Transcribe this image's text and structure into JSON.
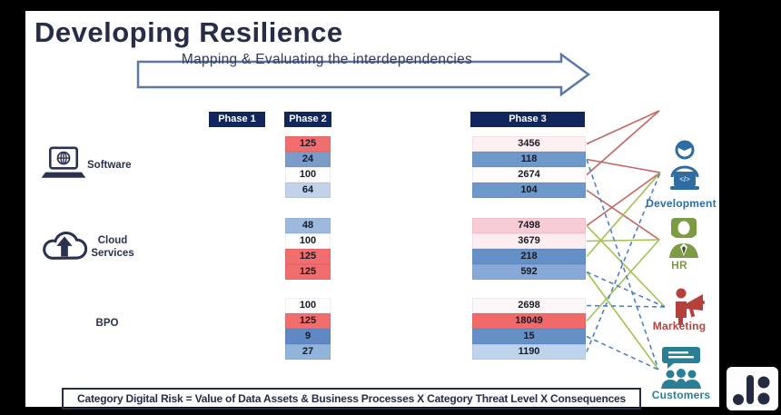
{
  "title": "Developing Resilience",
  "arrow_banner": {
    "label": "Mapping & Evaluating the interdependencies"
  },
  "phases": [
    {
      "label": "Phase 1"
    },
    {
      "label": "Phase 2"
    },
    {
      "label": "Phase 3"
    }
  ],
  "groups": [
    {
      "id": "software",
      "label": "Software",
      "icon": "laptop-globe-icon",
      "phase2": [
        {
          "value": "125",
          "color": "#f26d6d"
        },
        {
          "value": "24",
          "color": "#7b9cc9"
        },
        {
          "value": "100",
          "color": "#fdfdfe"
        },
        {
          "value": "64",
          "color": "#c2d3e9"
        }
      ],
      "phase3": [
        {
          "value": "3456",
          "color": "#fdf0f2"
        },
        {
          "value": "118",
          "color": "#6e97ca"
        },
        {
          "value": "2674",
          "color": "#fefbfc"
        },
        {
          "value": "104",
          "color": "#6e97ca"
        }
      ]
    },
    {
      "id": "cloud",
      "label": "Cloud Services",
      "icon": "cloud-upload-icon",
      "phase2": [
        {
          "value": "48",
          "color": "#9dbade"
        },
        {
          "value": "100",
          "color": "#fefeff"
        },
        {
          "value": "125",
          "color": "#f26d6d"
        },
        {
          "value": "125",
          "color": "#f26d6d"
        }
      ],
      "phase3": [
        {
          "value": "7498",
          "color": "#f9ccd5"
        },
        {
          "value": "3679",
          "color": "#fdedf0"
        },
        {
          "value": "218",
          "color": "#6590c6"
        },
        {
          "value": "592",
          "color": "#88a9d5"
        }
      ]
    },
    {
      "id": "bpo",
      "label": "BPO",
      "icon": "none",
      "phase2": [
        {
          "value": "100",
          "color": "#fefeff"
        },
        {
          "value": "125",
          "color": "#f26d6d"
        },
        {
          "value": "9",
          "color": "#6088c5"
        },
        {
          "value": "27",
          "color": "#92b3da"
        }
      ],
      "phase3": [
        {
          "value": "2698",
          "color": "#fef7f8"
        },
        {
          "value": "18049",
          "color": "#f26969"
        },
        {
          "value": "15",
          "color": "#6590c6"
        },
        {
          "value": "1190",
          "color": "#bed3ec"
        }
      ]
    }
  ],
  "stakeholders": [
    {
      "id": "development",
      "label": "Development",
      "color": "#2e6da4",
      "icon": "developer-laptop-icon"
    },
    {
      "id": "hr",
      "label": "HR",
      "color": "#7d9b44",
      "icon": "hr-person-icon"
    },
    {
      "id": "marketing",
      "label": "Marketing",
      "color": "#b5413c",
      "icon": "megaphone-person-icon"
    },
    {
      "id": "customers",
      "label": "Customers",
      "color": "#2a7f96",
      "icon": "customers-group-icon"
    }
  ],
  "connections": [
    {
      "from": "software.0",
      "to": "offpage_top",
      "color": "red",
      "dashed": false
    },
    {
      "from": "software.2",
      "to": "offpage_top",
      "color": "red",
      "dashed": false
    },
    {
      "from": "software.1",
      "to": "development",
      "color": "red",
      "dashed": false
    },
    {
      "from": "cloud.0",
      "to": "development",
      "color": "red",
      "dashed": false
    },
    {
      "from": "software.3",
      "to": "hr",
      "color": "red",
      "dashed": false
    },
    {
      "from": "cloud.2",
      "to": "development",
      "color": "green",
      "dashed": false
    },
    {
      "from": "cloud.1",
      "to": "hr",
      "color": "green",
      "dashed": false
    },
    {
      "from": "bpo.1",
      "to": "hr",
      "color": "green",
      "dashed": false
    },
    {
      "from": "cloud.0",
      "to": "marketing",
      "color": "green",
      "dashed": false
    },
    {
      "from": "cloud.3",
      "to": "customers",
      "color": "green",
      "dashed": false
    },
    {
      "from": "bpo.3",
      "to": "development",
      "color": "blue",
      "dashed": true
    },
    {
      "from": "software.1",
      "to": "customers",
      "color": "blue",
      "dashed": true
    },
    {
      "from": "bpo.0",
      "to": "marketing",
      "color": "blue",
      "dashed": true
    },
    {
      "from": "cloud.3",
      "to": "marketing",
      "color": "blue",
      "dashed": true
    },
    {
      "from": "bpo.2",
      "to": "customers",
      "color": "blue",
      "dashed": true
    }
  ],
  "footer": {
    "formula": "Category Digital Risk = Value of Data Assets & Business Processes X Category Threat Level X Consequences"
  },
  "colors": {
    "red": "#c96262",
    "green": "#a3c14f",
    "blue": "#4f81bd",
    "header_navy": "#12265e",
    "title_navy": "#272c49",
    "arrow_border": "#5b79a8"
  }
}
